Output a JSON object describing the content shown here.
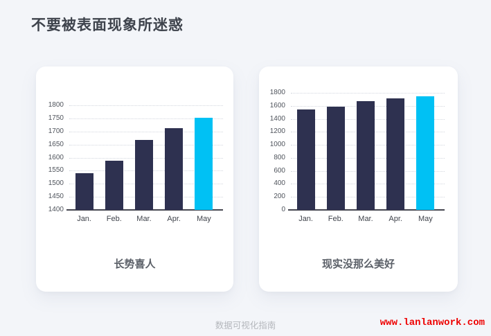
{
  "title": "不要被表面现象所迷惑",
  "footer": {
    "caption": "数据可视化指南",
    "website": "www.lanlanwork.com"
  },
  "colors": {
    "background": "#f3f5f9",
    "card": "#ffffff",
    "bar_dark": "#2e3150",
    "bar_highlight": "#00c1f4",
    "axis": "#45464f",
    "gridline": "#d2d6de",
    "website_red": "#ee0000"
  },
  "chart_data": [
    {
      "type": "bar",
      "title": "长势喜人",
      "categories": [
        "Jan.",
        "Feb.",
        "Mar.",
        "Apr.",
        "May"
      ],
      "values": [
        1540,
        1588,
        1668,
        1713,
        1752
      ],
      "highlight_index": 4,
      "xlabel": "",
      "ylabel": "",
      "ylim": [
        1400,
        1800
      ],
      "ystep": 50,
      "grid": "horizontal-dotted",
      "legend": "none"
    },
    {
      "type": "bar",
      "title": "现实没那么美好",
      "categories": [
        "Jan.",
        "Feb.",
        "Mar.",
        "Apr.",
        "May"
      ],
      "values": [
        1540,
        1588,
        1668,
        1713,
        1752
      ],
      "highlight_index": 4,
      "xlabel": "",
      "ylabel": "",
      "ylim": [
        0,
        1800
      ],
      "ystep": 200,
      "grid": "horizontal-dotted",
      "legend": "none"
    }
  ]
}
